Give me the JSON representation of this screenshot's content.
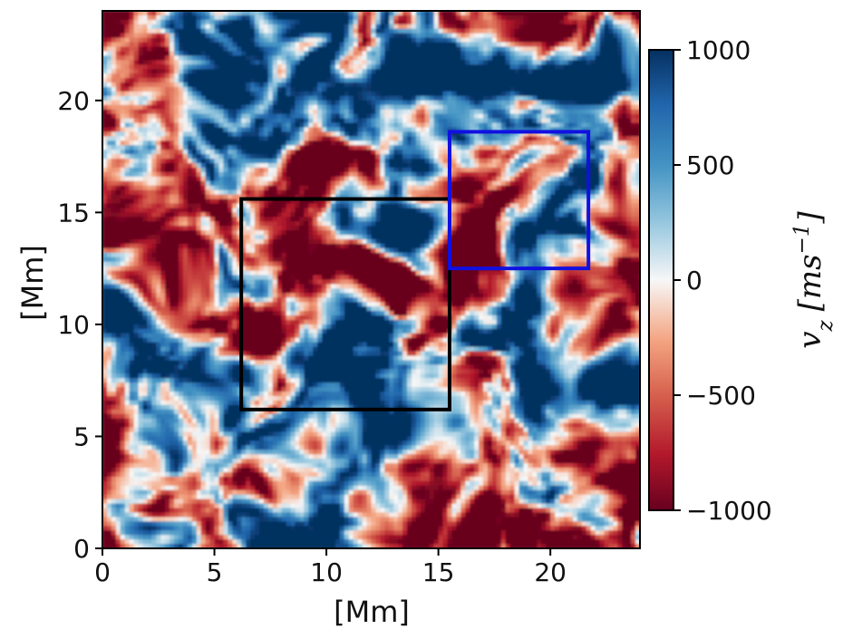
{
  "chart_data": {
    "type": "heatmap",
    "title": "",
    "xlabel": "[Mm]",
    "ylabel": "[Mm]",
    "xlim": [
      0,
      24
    ],
    "ylim": [
      0,
      24
    ],
    "x_ticks": [
      0,
      5,
      10,
      15,
      20
    ],
    "y_ticks": [
      0,
      5,
      10,
      15,
      20
    ],
    "x_tick_labels": [
      "0",
      "5",
      "10",
      "15",
      "20"
    ],
    "y_tick_labels": [
      "0",
      "5",
      "10",
      "15",
      "20"
    ],
    "grid": false,
    "colormap": "RdBu",
    "colorbar": {
      "label": "v_z [ms^-1]",
      "label_text": {
        "v": "v",
        "sub": "z",
        "unit_open": "[ms",
        "sup": "−1",
        "unit_close": "]"
      },
      "range": [
        -1000,
        1000
      ],
      "ticks": [
        1000,
        500,
        0,
        -500,
        -1000
      ],
      "tick_labels": [
        "1000",
        "500",
        "0",
        "−500",
        "−1000"
      ],
      "low_color": "#67001f",
      "mid_color": "#f7f7f7",
      "high_color": "#053061"
    },
    "regions": [
      {
        "edge_color": "#000000",
        "x": [
          6.2,
          15.5
        ],
        "y": [
          6.2,
          15.6
        ]
      },
      {
        "edge_color": "#1010e0",
        "x": [
          15.5,
          21.7
        ],
        "y": [
          12.5,
          18.6
        ]
      }
    ]
  }
}
